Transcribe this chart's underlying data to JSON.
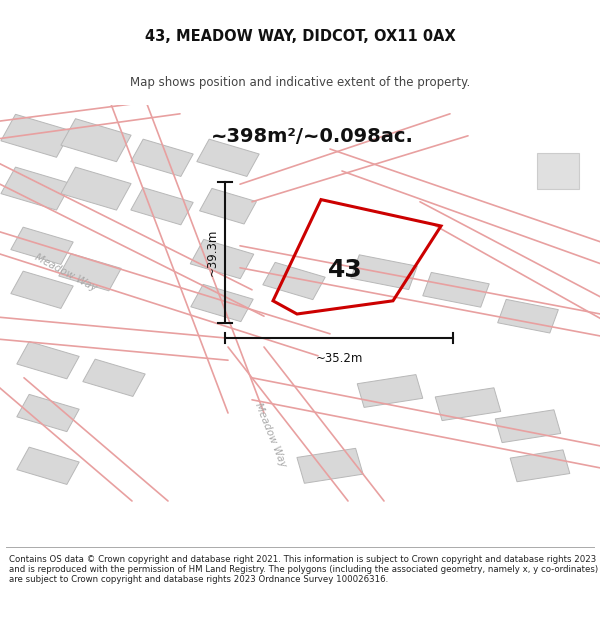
{
  "title": "43, MEADOW WAY, DIDCOT, OX11 0AX",
  "subtitle": "Map shows position and indicative extent of the property.",
  "area_text": "~398m²/~0.098ac.",
  "label_43": "43",
  "dim_vertical": "~39.3m",
  "dim_horizontal": "~35.2m",
  "footer": "Contains OS data © Crown copyright and database right 2021. This information is subject to Crown copyright and database rights 2023 and is reproduced with the permission of HM Land Registry. The polygons (including the associated geometry, namely x, y co-ordinates) are subject to Crown copyright and database rights 2023 Ordnance Survey 100026316.",
  "bg_color": "#ffffff",
  "map_bg": "#f7f0f0",
  "road_line_color": "#e8a0a0",
  "building_color": "#d8d8d8",
  "building_edge": "#b8b8b8",
  "property_color": "#cc0000",
  "dim_color": "#111111",
  "title_color": "#111111",
  "road_label_color": "#aaaaaa",
  "meadow_way_label1": "Meadow Way",
  "meadow_way_label2": "Meadow Way",
  "top_right_box_color": "#e0e0e0",
  "top_right_box_edge": "#cccccc"
}
